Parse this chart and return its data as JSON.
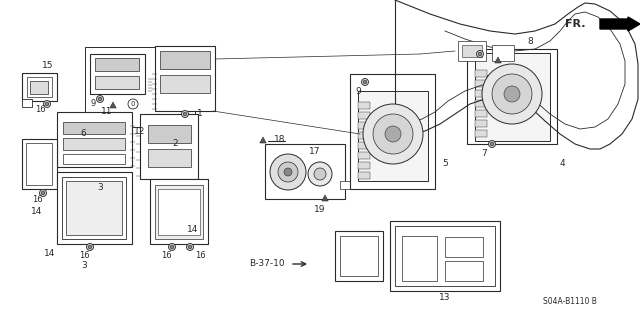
{
  "fig_width": 6.4,
  "fig_height": 3.19,
  "dpi": 100,
  "bg_color": "#ffffff",
  "lc": "#2a2a2a",
  "part_number": "S04A-B1110 B",
  "ref_code": "B-37-10",
  "fr_label": "FR.",
  "lw": 0.8
}
